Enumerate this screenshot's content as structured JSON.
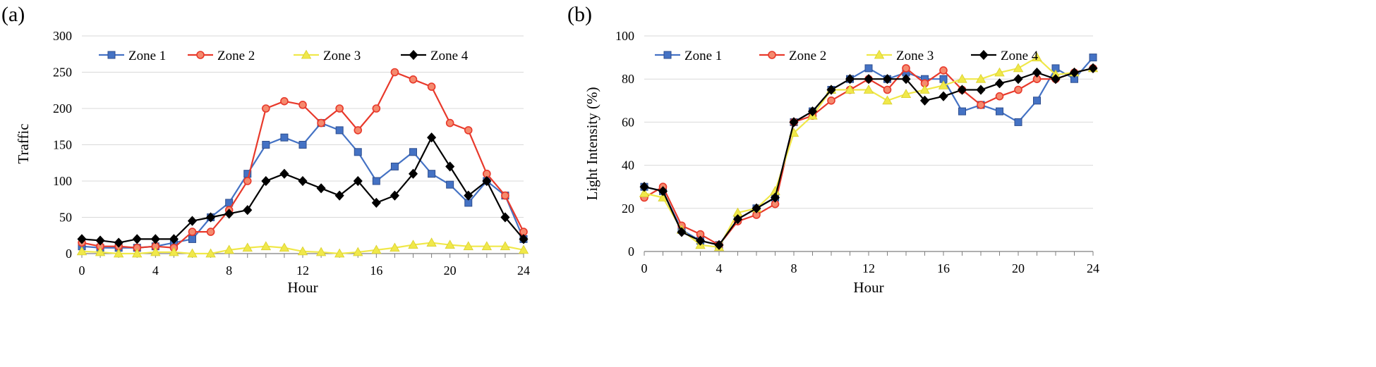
{
  "chart_data": [
    {
      "panel": "(a)",
      "type": "line",
      "title": "",
      "xlabel": "Hour",
      "ylabel": "Traffic",
      "xlim": [
        0,
        24
      ],
      "ylim": [
        0,
        300
      ],
      "xticks": [
        "0",
        "4",
        "8",
        "12",
        "16",
        "20",
        "24"
      ],
      "xtick_values": [
        0,
        4,
        8,
        12,
        16,
        20,
        24
      ],
      "yticks": [
        "0",
        "50",
        "100",
        "150",
        "200",
        "250",
        "300"
      ],
      "ytick_values": [
        0,
        50,
        100,
        150,
        200,
        250,
        300
      ],
      "grid": "horizontal",
      "legend": "top-left, horizontal",
      "x": [
        0,
        1,
        2,
        3,
        4,
        5,
        6,
        7,
        8,
        9,
        10,
        11,
        12,
        13,
        14,
        15,
        16,
        17,
        18,
        19,
        20,
        21,
        22,
        23,
        24
      ],
      "series": [
        {
          "name": "Zone 1",
          "color": "#4472c4",
          "marker": "square",
          "values": [
            10,
            8,
            8,
            8,
            10,
            15,
            20,
            50,
            70,
            110,
            150,
            160,
            150,
            180,
            170,
            140,
            100,
            120,
            140,
            110,
            95,
            70,
            100,
            80,
            20
          ]
        },
        {
          "name": "Zone 2",
          "color": "#e8392b",
          "marker": "circle",
          "values": [
            15,
            10,
            10,
            8,
            10,
            8,
            30,
            30,
            60,
            100,
            200,
            210,
            205,
            180,
            200,
            170,
            200,
            250,
            240,
            230,
            180,
            170,
            110,
            80,
            30
          ]
        },
        {
          "name": "Zone 3",
          "color": "#f0e84a",
          "marker": "triangle",
          "values": [
            3,
            2,
            0,
            0,
            2,
            2,
            0,
            0,
            5,
            8,
            10,
            8,
            3,
            2,
            0,
            2,
            5,
            8,
            12,
            15,
            12,
            10,
            10,
            10,
            5
          ]
        },
        {
          "name": "Zone 4",
          "color": "#000000",
          "marker": "diamond",
          "values": [
            20,
            18,
            15,
            20,
            20,
            20,
            45,
            50,
            55,
            60,
            100,
            110,
            100,
            90,
            80,
            100,
            70,
            80,
            110,
            160,
            120,
            80,
            100,
            50,
            20
          ]
        }
      ]
    },
    {
      "panel": "(b)",
      "type": "line",
      "title": "",
      "xlabel": "Hour",
      "ylabel": "Light Intensity (%)",
      "xlim": [
        0,
        24
      ],
      "ylim": [
        0,
        100
      ],
      "xticks": [
        "0",
        "4",
        "8",
        "12",
        "16",
        "20",
        "24"
      ],
      "xtick_values": [
        0,
        4,
        8,
        12,
        16,
        20,
        24
      ],
      "yticks": [
        "0",
        "20",
        "40",
        "60",
        "80",
        "100"
      ],
      "ytick_values": [
        0,
        20,
        40,
        60,
        80,
        100
      ],
      "grid": "horizontal",
      "legend": "top-left, horizontal",
      "x": [
        0,
        1,
        2,
        3,
        4,
        5,
        6,
        7,
        8,
        9,
        10,
        11,
        12,
        13,
        14,
        15,
        16,
        17,
        18,
        19,
        20,
        21,
        22,
        23,
        24
      ],
      "series": [
        {
          "name": "Zone 1",
          "color": "#4472c4",
          "marker": "square",
          "values": [
            30,
            28,
            10,
            5,
            3,
            15,
            20,
            25,
            60,
            65,
            75,
            80,
            85,
            80,
            83,
            80,
            80,
            65,
            68,
            65,
            60,
            70,
            85,
            80,
            90
          ]
        },
        {
          "name": "Zone 2",
          "color": "#e8392b",
          "marker": "circle",
          "values": [
            25,
            30,
            12,
            8,
            3,
            14,
            17,
            22,
            60,
            63,
            70,
            75,
            80,
            75,
            85,
            78,
            84,
            75,
            68,
            72,
            75,
            80,
            80,
            83,
            85
          ]
        },
        {
          "name": "Zone 3",
          "color": "#f0e84a",
          "marker": "triangle",
          "values": [
            27,
            25,
            10,
            3,
            2,
            18,
            20,
            28,
            55,
            63,
            75,
            75,
            75,
            70,
            73,
            75,
            77,
            80,
            80,
            83,
            85,
            90,
            82,
            83,
            85
          ]
        },
        {
          "name": "Zone 4",
          "color": "#000000",
          "marker": "diamond",
          "values": [
            30,
            28,
            9,
            5,
            3,
            15,
            20,
            25,
            60,
            65,
            75,
            80,
            80,
            80,
            80,
            70,
            72,
            75,
            75,
            78,
            80,
            83,
            80,
            83,
            85
          ]
        }
      ]
    }
  ]
}
